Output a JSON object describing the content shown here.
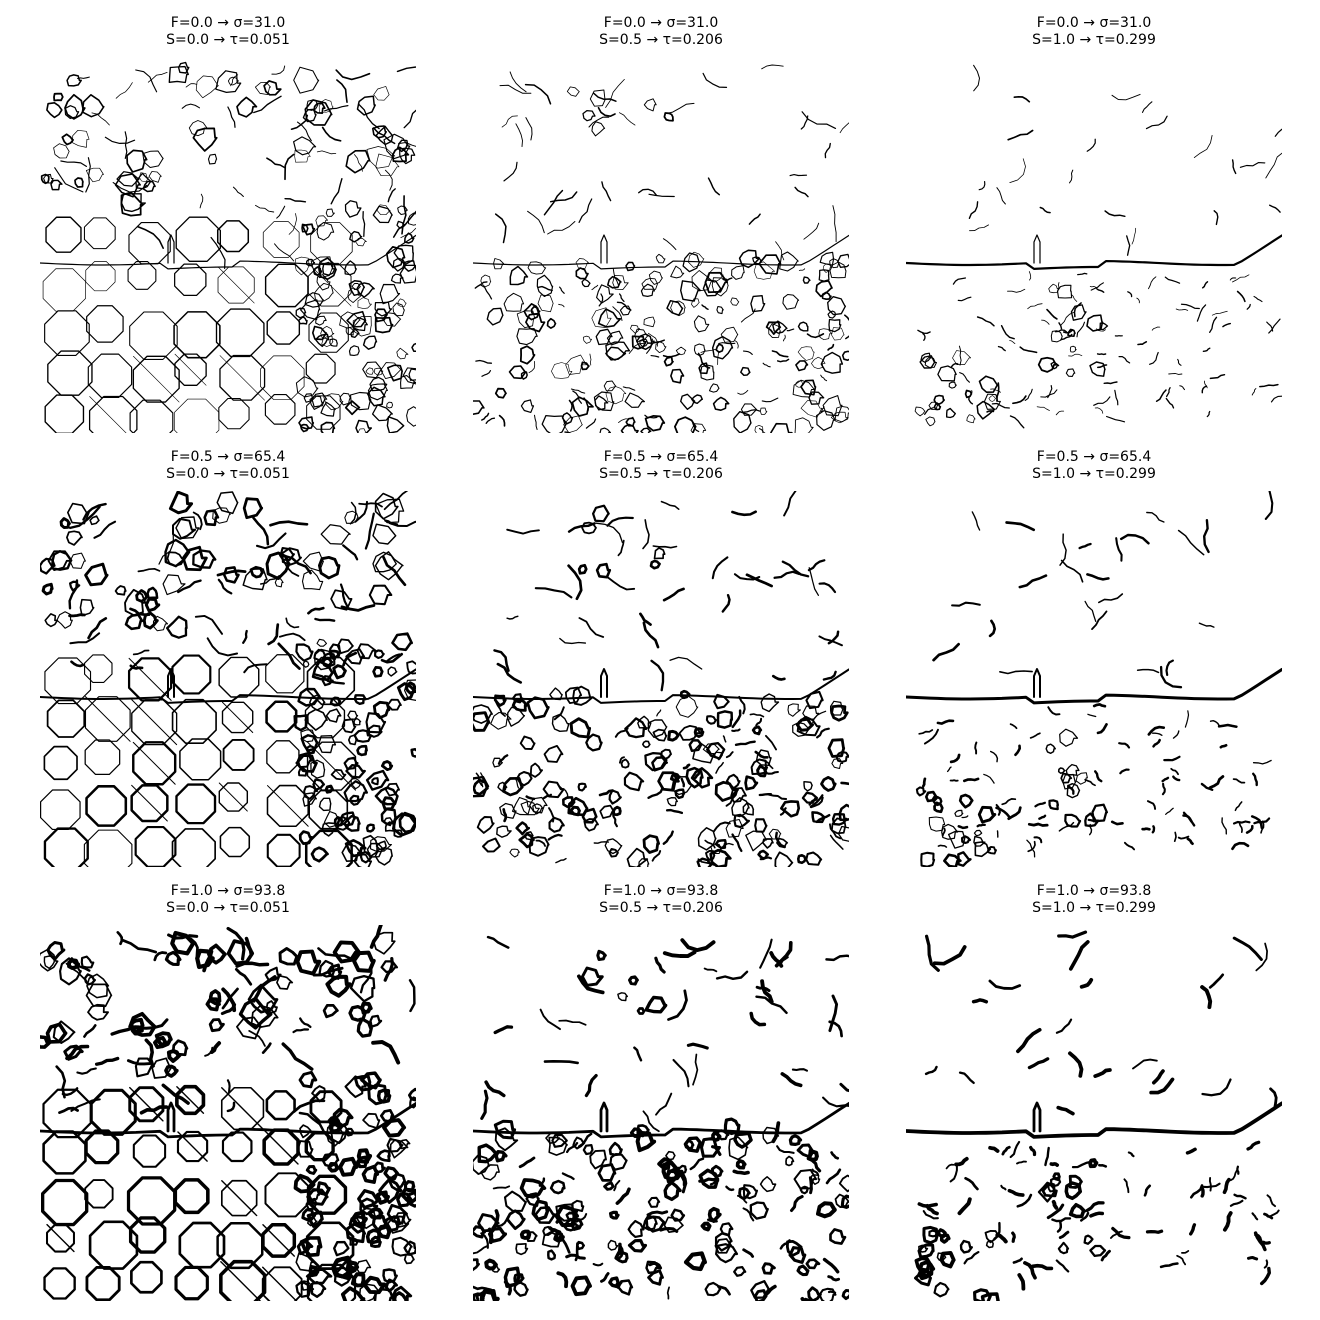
{
  "figure": {
    "rows": [
      {
        "f_label": "F=0.0 → σ=31.0"
      },
      {
        "f_label": "F=0.5 → σ=65.4"
      },
      {
        "f_label": "F=1.0 → σ=93.8"
      }
    ],
    "cols": [
      {
        "s_label": "S=0.0 → τ=0.051"
      },
      {
        "s_label": "S=0.5 → τ=0.206"
      },
      {
        "s_label": "S=1.0 → τ=0.299"
      }
    ],
    "panels": [
      {
        "f": 0.0,
        "sigma": 31.0,
        "s": 0.0,
        "tau": 0.051
      },
      {
        "f": 0.0,
        "sigma": 31.0,
        "s": 0.5,
        "tau": 0.206
      },
      {
        "f": 0.0,
        "sigma": 31.0,
        "s": 1.0,
        "tau": 0.299
      },
      {
        "f": 0.5,
        "sigma": 65.4,
        "s": 0.0,
        "tau": 0.051
      },
      {
        "f": 0.5,
        "sigma": 65.4,
        "s": 0.5,
        "tau": 0.206
      },
      {
        "f": 0.5,
        "sigma": 65.4,
        "s": 1.0,
        "tau": 0.299
      },
      {
        "f": 1.0,
        "sigma": 93.8,
        "s": 0.0,
        "tau": 0.051
      },
      {
        "f": 1.0,
        "sigma": 93.8,
        "s": 0.5,
        "tau": 0.206
      },
      {
        "f": 1.0,
        "sigma": 93.8,
        "s": 1.0,
        "tau": 0.299
      }
    ],
    "colors": {
      "line": "#000000",
      "background": "#ffffff"
    }
  }
}
